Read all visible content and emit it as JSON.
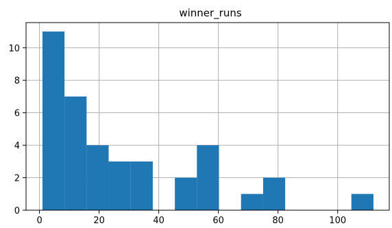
{
  "chart_data": {
    "type": "bar",
    "title": "winner_runs",
    "xlabel": "",
    "ylabel": "",
    "xlim": [
      -4.5,
      117.3
    ],
    "ylim": [
      0,
      11.55
    ],
    "grid": true,
    "bar_color": "#1f77b4",
    "bins": [
      {
        "x0": 1,
        "x1": 8.4,
        "count": 11
      },
      {
        "x0": 8.4,
        "x1": 15.8,
        "count": 7
      },
      {
        "x0": 15.8,
        "x1": 23.2,
        "count": 4
      },
      {
        "x0": 23.2,
        "x1": 30.6,
        "count": 3
      },
      {
        "x0": 30.6,
        "x1": 38,
        "count": 3
      },
      {
        "x0": 38,
        "x1": 45.4,
        "count": 0
      },
      {
        "x0": 45.4,
        "x1": 52.8,
        "count": 2
      },
      {
        "x0": 52.8,
        "x1": 60.2,
        "count": 4
      },
      {
        "x0": 60.2,
        "x1": 67.6,
        "count": 0
      },
      {
        "x0": 67.6,
        "x1": 75,
        "count": 1
      },
      {
        "x0": 75,
        "x1": 82.4,
        "count": 2
      },
      {
        "x0": 82.4,
        "x1": 89.8,
        "count": 0
      },
      {
        "x0": 89.8,
        "x1": 97.2,
        "count": 0
      },
      {
        "x0": 97.2,
        "x1": 104.6,
        "count": 0
      },
      {
        "x0": 104.6,
        "x1": 112,
        "count": 1
      }
    ],
    "x_ticks": [
      0,
      20,
      40,
      60,
      80,
      100
    ],
    "y_ticks": [
      0,
      2,
      4,
      6,
      8,
      10
    ]
  }
}
